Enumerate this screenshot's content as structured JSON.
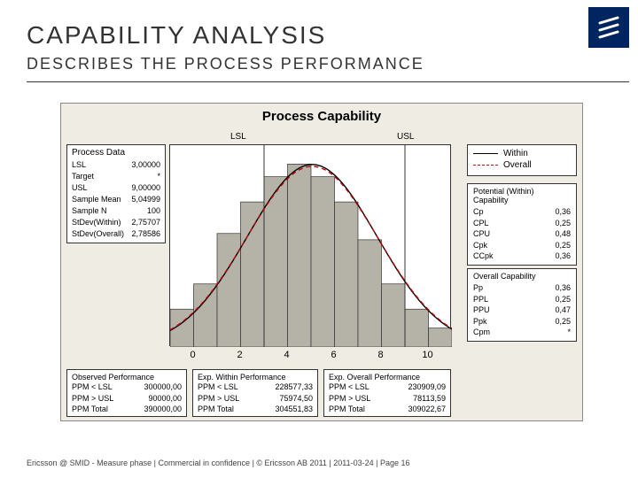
{
  "brand": {
    "block_color": "#002561",
    "stripe_color": "#ffffff"
  },
  "title": "CAPABILITY ANALYSIS",
  "subtitle": "DESCRIBES THE PROCESS PERFORMANCE",
  "chart": {
    "title": "Process Capability",
    "lsl_label": "LSL",
    "usl_label": "USL",
    "type": "histogram+curve",
    "x_range": [
      -1,
      11
    ],
    "x_ticks": [
      0,
      2,
      4,
      6,
      8,
      10
    ],
    "bin_width": 1,
    "bins": [
      {
        "x": -0.5,
        "h": 0.03
      },
      {
        "x": 0.5,
        "h": 0.05
      },
      {
        "x": 1.5,
        "h": 0.09
      },
      {
        "x": 2.5,
        "h": 0.115
      },
      {
        "x": 3.5,
        "h": 0.135
      },
      {
        "x": 4.5,
        "h": 0.145
      },
      {
        "x": 5.5,
        "h": 0.135
      },
      {
        "x": 6.5,
        "h": 0.115
      },
      {
        "x": 7.5,
        "h": 0.085
      },
      {
        "x": 8.5,
        "h": 0.05
      },
      {
        "x": 9.5,
        "h": 0.03
      },
      {
        "x": 10.5,
        "h": 0.015
      }
    ],
    "y_max": 0.16,
    "bar_fill": "#b5b2a8",
    "bar_stroke": "#333333",
    "curve_within": {
      "mu": 5.05,
      "sigma": 2.757,
      "color": "#000000",
      "dash": "none"
    },
    "curve_overall": {
      "mu": 5.05,
      "sigma": 2.786,
      "color": "#c00000",
      "dash": "5,4"
    },
    "lsl": 3,
    "usl": 9,
    "spec_line_color": "#333333",
    "background": "#efece4",
    "plot_bg": "#ffffff"
  },
  "process_data": {
    "header": "Process Data",
    "rows": [
      [
        "LSL",
        "3,00000"
      ],
      [
        "Target",
        "*"
      ],
      [
        "USL",
        "9,00000"
      ],
      [
        "Sample Mean",
        "5,04999"
      ],
      [
        "Sample N",
        "100"
      ],
      [
        "StDev(Within)",
        "2,75707"
      ],
      [
        "StDev(Overall)",
        "2,78586"
      ]
    ]
  },
  "legend": {
    "within": "Within",
    "overall": "Overall"
  },
  "cap_within": {
    "header": "Potential (Within) Capability",
    "rows": [
      [
        "Cp",
        "0,36"
      ],
      [
        "CPL",
        "0,25"
      ],
      [
        "CPU",
        "0,48"
      ],
      [
        "Cpk",
        "0,25"
      ],
      [
        "CCpk",
        "0,36"
      ]
    ]
  },
  "cap_overall": {
    "header": "Overall Capability",
    "rows": [
      [
        "Pp",
        "0,36"
      ],
      [
        "PPL",
        "0,25"
      ],
      [
        "PPU",
        "0,47"
      ],
      [
        "Ppk",
        "0,25"
      ],
      [
        "Cpm",
        "*"
      ]
    ]
  },
  "perf_observed": {
    "header": "Observed Performance",
    "rows": [
      [
        "PPM < LSL",
        "300000,00"
      ],
      [
        "PPM > USL",
        "90000,00"
      ],
      [
        "PPM Total",
        "390000,00"
      ]
    ]
  },
  "perf_within": {
    "header": "Exp. Within Performance",
    "rows": [
      [
        "PPM < LSL",
        "228577,33"
      ],
      [
        "PPM > USL",
        "75974,50"
      ],
      [
        "PPM Total",
        "304551,83"
      ]
    ]
  },
  "perf_overall": {
    "header": "Exp. Overall Performance",
    "rows": [
      [
        "PPM < LSL",
        "230909,09"
      ],
      [
        "PPM > USL",
        "78113,59"
      ],
      [
        "PPM Total",
        "309022,67"
      ]
    ]
  },
  "footer": "Ericsson @ SMID - Measure phase  |  Commercial in confidence  |  © Ericsson AB 2011  |  2011-03-24  |  Page 16"
}
